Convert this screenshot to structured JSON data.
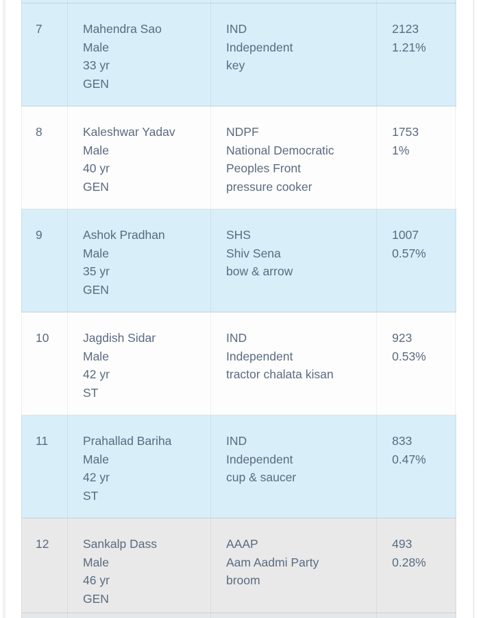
{
  "colors": {
    "row_blue": "#d8eef9",
    "row_white": "#fdfdfd",
    "row_gray": "#e9e9e9",
    "prev_row_strip": "#d8eef9",
    "next_row_strip": "#e4e8ea",
    "text": "#5a6b80"
  },
  "table": {
    "rows": [
      {
        "num": "7",
        "name": "Mahendra Sao",
        "gender": "Male",
        "age": "33 yr",
        "category": "GEN",
        "party_abbr": "IND",
        "party_name": "Independent",
        "symbol": "key",
        "votes": "2123",
        "percent": "1.21%",
        "variant": "blue"
      },
      {
        "num": "8",
        "name": "Kaleshwar Yadav",
        "gender": "Male",
        "age": "40 yr",
        "category": "GEN",
        "party_abbr": "NDPF",
        "party_name": "National Democratic Peoples Front",
        "symbol": "pressure cooker",
        "votes": "1753",
        "percent": "1%",
        "variant": "white"
      },
      {
        "num": "9",
        "name": "Ashok Pradhan",
        "gender": "Male",
        "age": "35 yr",
        "category": "GEN",
        "party_abbr": "SHS",
        "party_name": "Shiv Sena",
        "symbol": "bow & arrow",
        "votes": "1007",
        "percent": "0.57%",
        "variant": "blue"
      },
      {
        "num": "10",
        "name": "Jagdish Sidar",
        "gender": "Male",
        "age": "42 yr",
        "category": "ST",
        "party_abbr": "IND",
        "party_name": "Independent",
        "symbol": "tractor chalata kisan",
        "votes": "923",
        "percent": "0.53%",
        "variant": "white"
      },
      {
        "num": "11",
        "name": "Prahallad Bariha",
        "gender": "Male",
        "age": "42 yr",
        "category": "ST",
        "party_abbr": "IND",
        "party_name": "Independent",
        "symbol": "cup & saucer",
        "votes": "833",
        "percent": "0.47%",
        "variant": "blue"
      },
      {
        "num": "12",
        "name": "Sankalp Dass",
        "gender": "Male",
        "age": "46 yr",
        "category": "GEN",
        "party_abbr": "AAAP",
        "party_name": "Aam Aadmi Party",
        "symbol": "broom",
        "votes": "493",
        "percent": "0.28%",
        "variant": "gray"
      }
    ]
  }
}
